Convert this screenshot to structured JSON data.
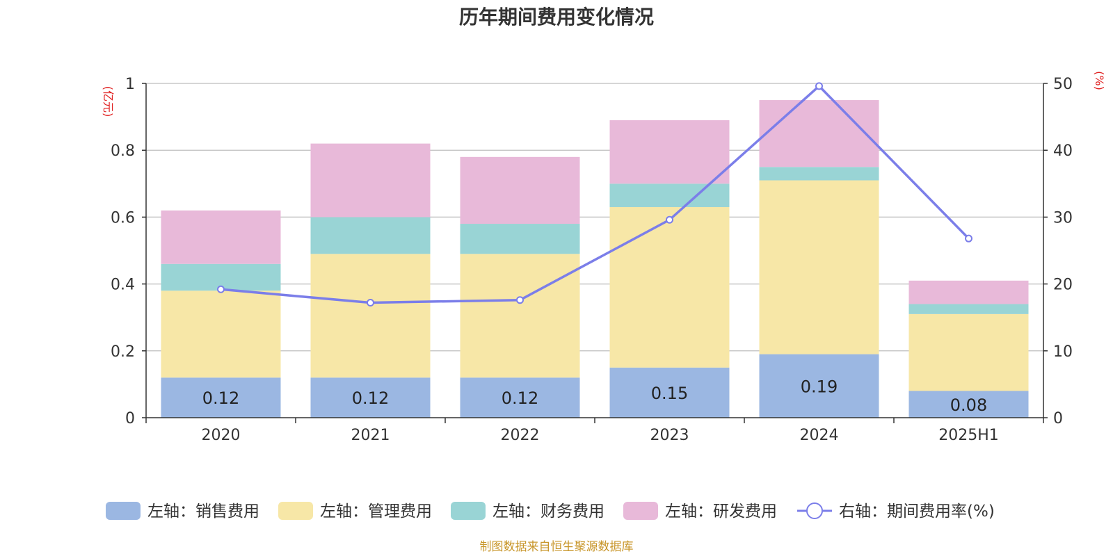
{
  "chart_data": {
    "type": "bar",
    "title": "历年期间费用变化情况",
    "left_unit": "(亿元)",
    "right_unit": "(%)",
    "categories": [
      "2020",
      "2021",
      "2022",
      "2023",
      "2024",
      "2025H1"
    ],
    "series": [
      {
        "name": "左轴：销售费用",
        "axis": "left",
        "stack": true,
        "color": "#9bb7e2",
        "values": [
          0.12,
          0.12,
          0.12,
          0.15,
          0.19,
          0.08
        ],
        "labels": [
          "0.12",
          "0.12",
          "0.12",
          "0.15",
          "0.19",
          "0.08"
        ]
      },
      {
        "name": "左轴：管理费用",
        "axis": "left",
        "stack": true,
        "color": "#f7e7a7",
        "values": [
          0.26,
          0.37,
          0.37,
          0.48,
          0.52,
          0.23
        ]
      },
      {
        "name": "左轴：财务费用",
        "axis": "left",
        "stack": true,
        "color": "#99d4d5",
        "values": [
          0.08,
          0.11,
          0.09,
          0.07,
          0.04,
          0.03
        ]
      },
      {
        "name": "左轴：研发费用",
        "axis": "left",
        "stack": true,
        "color": "#e8b9d9",
        "values": [
          0.16,
          0.22,
          0.2,
          0.19,
          0.2,
          0.07
        ]
      },
      {
        "name": "右轴：期间费用率(%)",
        "axis": "right",
        "type": "line",
        "color": "#7b7ee9",
        "values": [
          19.2,
          17.2,
          17.6,
          29.6,
          49.6,
          26.8
        ]
      }
    ],
    "left_axis": {
      "min": 0,
      "max": 1,
      "ticks": [
        0,
        0.2,
        0.4,
        0.6,
        0.8,
        1
      ],
      "tick_labels": [
        "0",
        "0.2",
        "0.4",
        "0.6",
        "0.8",
        "1"
      ]
    },
    "right_axis": {
      "min": 0,
      "max": 50,
      "ticks": [
        0,
        10,
        20,
        30,
        40,
        50
      ],
      "tick_labels": [
        "0",
        "10",
        "20",
        "30",
        "40",
        "50"
      ]
    },
    "grid": true,
    "legend_position": "bottom",
    "unit_color": "#e02020",
    "source_color": "#c8962a"
  },
  "source": "制图数据来自恒生聚源数据库"
}
